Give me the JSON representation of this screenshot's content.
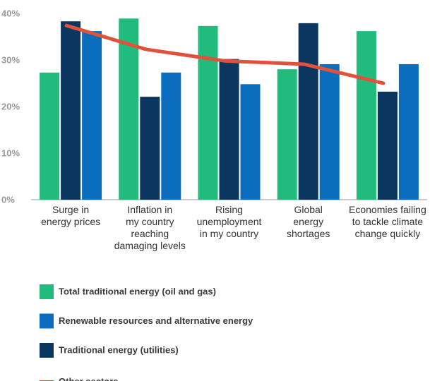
{
  "chart_data": {
    "type": "bar",
    "categories": [
      "Surge in\nenergy prices",
      "Inflation in\nmy country\nreaching\ndamaging levels",
      "Rising\nunemployment\nin my country",
      "Global\nenergy\nshortages",
      "Economies failing\nto tackle climate\nchange quickly"
    ],
    "series": [
      {
        "name": "Total traditional energy (oil and gas)",
        "color": "#21bb7e",
        "values": [
          27.3,
          38.9,
          37.3,
          28.0,
          36.2
        ]
      },
      {
        "name": "Traditional energy (utilities)",
        "color": "#0b3660",
        "values": [
          38.3,
          22.1,
          30.2,
          37.9,
          23.2
        ]
      },
      {
        "name": "Renewable resources and alternative energy",
        "color": "#0b6dbe",
        "values": [
          36.2,
          27.3,
          24.8,
          29.1,
          29.1
        ]
      },
      {
        "name": "Other sectors",
        "color": "#e0523b",
        "type": "line",
        "values": [
          37.4,
          32.3,
          29.8,
          29.1,
          25.0
        ]
      }
    ],
    "legend_order": [
      0,
      2,
      1,
      3
    ],
    "ylim": [
      0,
      40
    ],
    "yticks": [
      {
        "value": 0,
        "label": "0%"
      },
      {
        "value": 10,
        "label": "10%"
      },
      {
        "value": 20,
        "label": "20%"
      },
      {
        "value": 30,
        "label": "30%"
      },
      {
        "value": 40,
        "label": "40%"
      }
    ],
    "grid": false
  }
}
